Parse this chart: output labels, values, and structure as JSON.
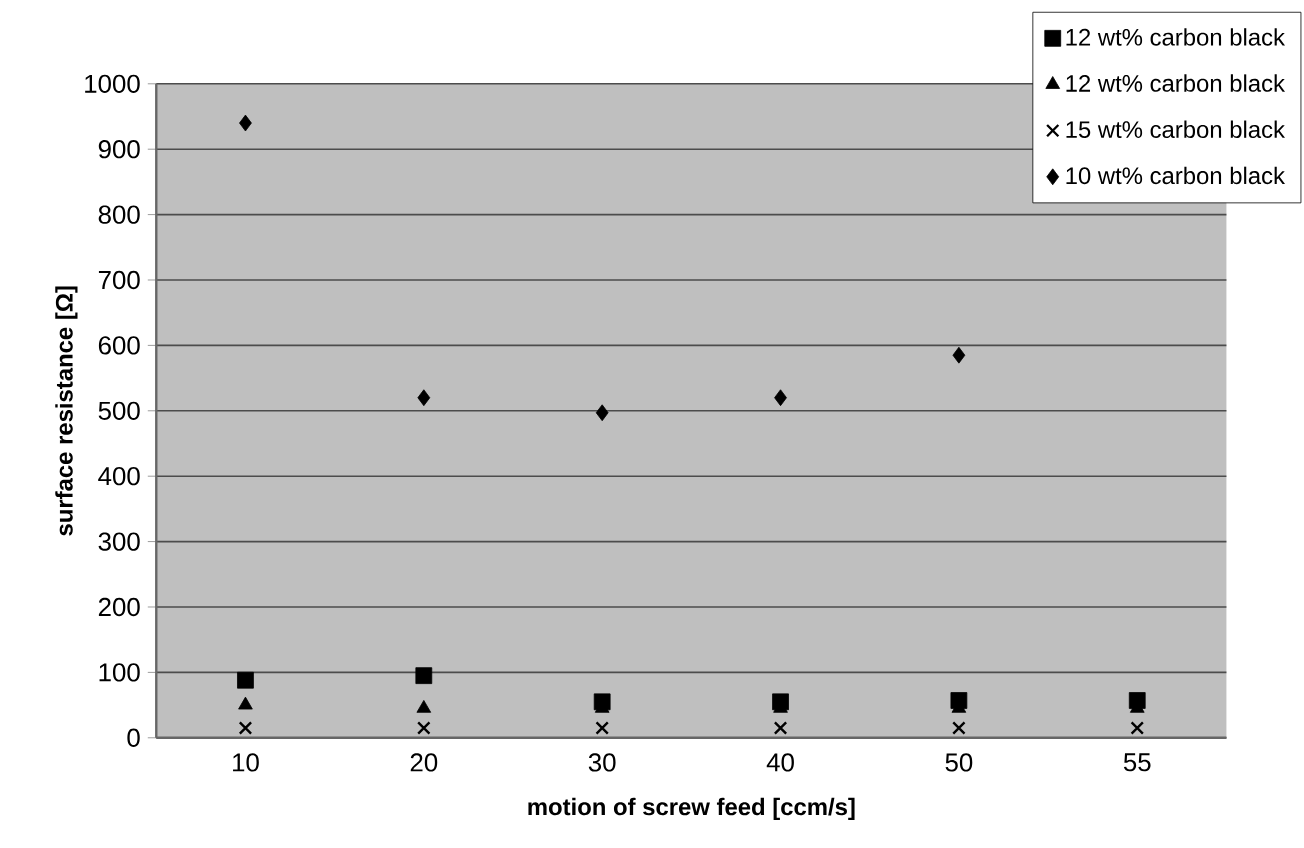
{
  "chart_data": {
    "type": "scatter",
    "xlabel": "motion of screw feed [ccm/s]",
    "ylabel": "surface resistance [Ω]",
    "categories": [
      "10",
      "20",
      "30",
      "40",
      "50",
      "55"
    ],
    "ylim": [
      0,
      1000
    ],
    "yticks": [
      0,
      100,
      200,
      300,
      400,
      500,
      600,
      700,
      800,
      900,
      1000
    ],
    "grid": "y",
    "legend": "top right",
    "series": [
      {
        "name": "12 wt% carbon black",
        "color": "#000000",
        "marker": "square",
        "values": [
          88,
          95,
          55,
          55,
          57,
          57
        ]
      },
      {
        "name": "12 wt% carbon black",
        "color": "#000000",
        "marker": "triangle",
        "values": [
          50,
          45,
          45,
          45,
          45,
          45
        ]
      },
      {
        "name": "15 wt% carbon black",
        "color": "#000000",
        "marker": "cross",
        "values": [
          15,
          15,
          15,
          15,
          15,
          15
        ]
      },
      {
        "name": "10 wt% carbon black",
        "color": "#000000",
        "marker": "diamond",
        "values": [
          940,
          520,
          497,
          520,
          585,
          null
        ]
      }
    ]
  }
}
